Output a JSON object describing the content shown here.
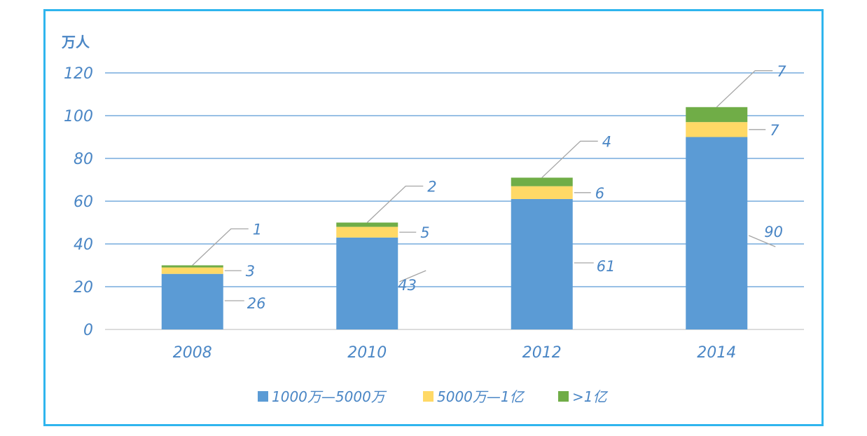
{
  "chart_data": {
    "type": "bar",
    "stacked": true,
    "unit_label": "万人",
    "categories": [
      "2008",
      "2010",
      "2012",
      "2014"
    ],
    "series": [
      {
        "name": "1000万—5000万",
        "values": [
          26,
          43,
          61,
          90
        ],
        "color": "#5b9bd5"
      },
      {
        "name": "5000万—1亿",
        "values": [
          3,
          5,
          6,
          7
        ],
        "color": "#ffd966"
      },
      {
        "name": ">1亿",
        "values": [
          1,
          2,
          4,
          7
        ],
        "color": "#70ad47"
      }
    ],
    "ylim": [
      0,
      120
    ],
    "yticks": [
      0,
      20,
      40,
      60,
      80,
      100,
      120
    ],
    "grid": true,
    "legend_position": "bottom"
  }
}
